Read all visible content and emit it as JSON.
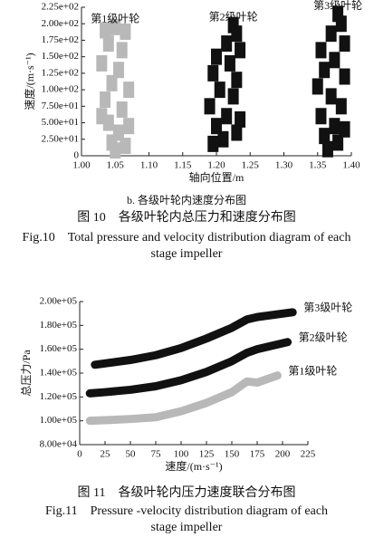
{
  "chart_data": [
    {
      "type": "scatter",
      "subtitle": "b. 各级叶轮内速度分布图",
      "x_label": "轴向位置/m",
      "y_label": "速度/(m·s⁻¹)",
      "xlim": [
        1.0,
        1.4
      ],
      "ylim": [
        0,
        225
      ],
      "xticks": [
        {
          "value": 1.0,
          "label": "1.00"
        },
        1.05,
        {
          "value": 1.1,
          "label": "1.10"
        },
        1.15,
        {
          "value": 1.2,
          "label": "1.20"
        },
        1.25,
        {
          "value": 1.3,
          "label": "1.30"
        },
        1.35,
        {
          "value": 1.4,
          "label": "1.40"
        }
      ],
      "yticks": [
        0,
        {
          "value": 25,
          "label": "2.50e+01"
        },
        {
          "value": 50,
          "label": "5.00e+01"
        },
        {
          "value": 75,
          "label": "7.50e+01"
        },
        {
          "value": 100,
          "label": "1.00e+02"
        },
        {
          "value": 125,
          "label": "1.25e+02"
        },
        {
          "value": 150,
          "label": "1.50e+02"
        },
        {
          "value": 175,
          "label": "1.75e+02"
        },
        {
          "value": 200,
          "label": "2.00e+02"
        },
        {
          "value": 225,
          "label": "2.25e+02"
        }
      ],
      "series": [
        {
          "name": "第1级叶轮",
          "color": "#b8b8b8",
          "x": [
            1.035,
            1.05,
            1.065,
            1.04,
            1.06,
            1.03,
            1.055,
            1.045,
            1.07,
            1.035,
            1.06,
            1.04,
            1.055,
            1.045,
            1.065,
            1.05,
            1.03,
            1.07
          ],
          "values": [
            190,
            195,
            188,
            170,
            160,
            140,
            130,
            110,
            100,
            85,
            70,
            50,
            35,
            20,
            15,
            8,
            60,
            45
          ]
        },
        {
          "name": "第2级叶轮",
          "color": "#111111",
          "x": [
            1.225,
            1.23,
            1.215,
            1.235,
            1.2,
            1.22,
            1.195,
            1.23,
            1.205,
            1.225,
            1.19,
            1.215,
            1.2,
            1.23,
            1.21,
            1.195,
            1.235
          ],
          "values": [
            198,
            185,
            170,
            160,
            150,
            140,
            125,
            115,
            100,
            90,
            75,
            60,
            45,
            35,
            25,
            18,
            55
          ]
        },
        {
          "name": "第3级叶轮",
          "color": "#111111",
          "x": [
            1.38,
            1.385,
            1.37,
            1.39,
            1.355,
            1.375,
            1.36,
            1.39,
            1.35,
            1.37,
            1.385,
            1.355,
            1.375,
            1.36,
            1.38,
            1.365,
            1.39
          ],
          "values": [
            215,
            200,
            185,
            170,
            160,
            145,
            130,
            120,
            105,
            90,
            75,
            60,
            45,
            30,
            20,
            10,
            40
          ]
        }
      ]
    },
    {
      "type": "line",
      "x_label": "速度/(m·s⁻¹)",
      "y_label": "总压力/Pa",
      "xlim": [
        0,
        225
      ],
      "ylim": [
        80000,
        200000
      ],
      "xticks": [
        0,
        25,
        50,
        75,
        100,
        125,
        150,
        175,
        200,
        225
      ],
      "yticks": [
        {
          "value": 80000,
          "label": "8.00e+04"
        },
        {
          "value": 100000,
          "label": "1.00e+05"
        },
        {
          "value": 120000,
          "label": "1.20e+05"
        },
        {
          "value": 140000,
          "label": "1.40e+05"
        },
        {
          "value": 160000,
          "label": "1.60e+05"
        },
        {
          "value": 180000,
          "label": "1.80e+05"
        },
        {
          "value": 200000,
          "label": "2.00e+05"
        }
      ],
      "series": [
        {
          "name": "第1级叶轮",
          "color": "#b8b8b8",
          "x": [
            10,
            25,
            50,
            75,
            100,
            125,
            150,
            165,
            175,
            195
          ],
          "values": [
            100000,
            100500,
            101500,
            103000,
            108000,
            115000,
            124000,
            133000,
            132000,
            138000
          ]
        },
        {
          "name": "第2级叶轮",
          "color": "#111111",
          "x": [
            10,
            25,
            50,
            75,
            100,
            125,
            150,
            165,
            175,
            205
          ],
          "values": [
            123000,
            124000,
            126000,
            129000,
            134000,
            141000,
            150000,
            157000,
            160000,
            166000
          ]
        },
        {
          "name": "第3级叶轮",
          "color": "#111111",
          "x": [
            15,
            50,
            75,
            100,
            125,
            150,
            165,
            175,
            210
          ],
          "values": [
            147000,
            151000,
            155000,
            161000,
            169000,
            178000,
            185000,
            187000,
            191000
          ]
        }
      ]
    }
  ],
  "captions": {
    "fig10_cn": "图 10　各级叶轮内总压力和速度分布图",
    "fig10_en": [
      "Fig.10　Total pressure and velocity distribution diagram of each",
      "stage impeller"
    ],
    "fig11_cn": "图 11　各级叶轮内压力速度联合分布图",
    "fig11_en": [
      "Fig.11　Pressure -velocity distribution diagram of each",
      "stage impeller"
    ]
  }
}
